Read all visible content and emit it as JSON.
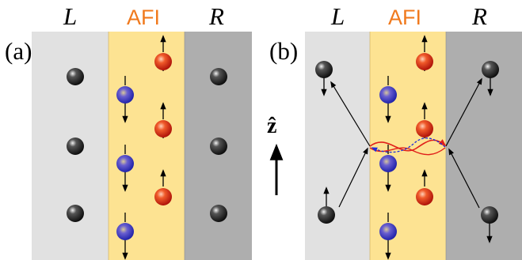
{
  "colors": {
    "left_lead": "#e1e1e1",
    "afi_region": "#fde392",
    "right_lead": "#aeaeae",
    "afi_text": "#f07a1e",
    "spin_up": "#e8311a",
    "spin_down": "#3940cf",
    "electron": "#222222",
    "red_path": "#e0201a",
    "blue_path": "#1f2dd8"
  },
  "panel_a": {
    "tag": "(a)",
    "left_label": "L",
    "middle_label": "AFI",
    "right_label": "R"
  },
  "panel_b": {
    "tag": "(b)",
    "left_label": "L",
    "middle_label": "AFI",
    "right_label": "R"
  },
  "axis": {
    "label": "ẑ"
  },
  "icons": [
    "electron-ball",
    "spin-up-atom",
    "spin-down-atom",
    "spin-arrow",
    "scattering-arrow",
    "z-axis-arrow"
  ]
}
